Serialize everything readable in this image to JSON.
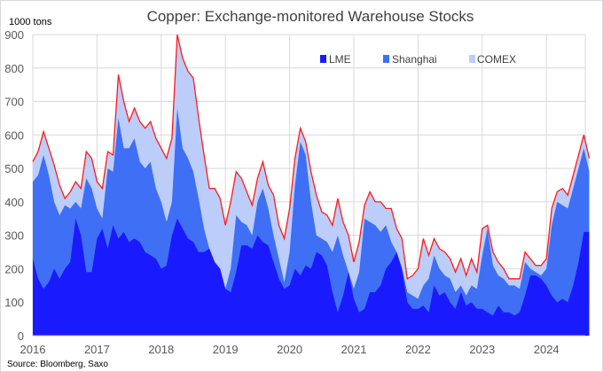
{
  "chart_data": {
    "type": "area",
    "stacked": true,
    "title": "Copper: Exchange-monitored Warehouse Stocks",
    "ylabel": "1000 tons",
    "xlabel": "",
    "source": "Source: Bloomberg, Saxo",
    "ylim": [
      0,
      900
    ],
    "yticks": [
      "0",
      "100",
      "200",
      "300",
      "400",
      "500",
      "600",
      "700",
      "800",
      "900"
    ],
    "xticks": [
      "2016",
      "2017",
      "2018",
      "2019",
      "2020",
      "2021",
      "2022",
      "2023",
      "2024"
    ],
    "x_start": "2016-01",
    "x_step": "month",
    "grid": true,
    "legend_position": "top-right",
    "colors": {
      "LME": "#1a1aff",
      "Shanghai": "#3f6ff5",
      "COMEX": "#bdcdfa",
      "total_line": "#ff1a1a"
    },
    "series": [
      {
        "name": "LME",
        "values": [
          230,
          170,
          140,
          160,
          200,
          170,
          200,
          220,
          350,
          300,
          190,
          190,
          290,
          320,
          260,
          330,
          290,
          310,
          280,
          290,
          280,
          250,
          240,
          230,
          200,
          210,
          300,
          350,
          320,
          290,
          280,
          250,
          250,
          260,
          220,
          200,
          140,
          130,
          190,
          270,
          270,
          260,
          300,
          280,
          270,
          220,
          170,
          140,
          150,
          200,
          180,
          210,
          200,
          250,
          240,
          210,
          130,
          70,
          120,
          190,
          110,
          70,
          80,
          130,
          130,
          150,
          200,
          220,
          250,
          200,
          100,
          80,
          80,
          90,
          70,
          150,
          120,
          130,
          100,
          80,
          130,
          90,
          100,
          80,
          80,
          70,
          60,
          90,
          70,
          70,
          60,
          70,
          120,
          180,
          180,
          170,
          150,
          120,
          100,
          110,
          100,
          150,
          220,
          310,
          310
        ]
      },
      {
        "name": "Shanghai",
        "values": [
          230,
          310,
          400,
          320,
          200,
          190,
          190,
          160,
          50,
          80,
          280,
          250,
          90,
          30,
          240,
          160,
          360,
          250,
          280,
          300,
          240,
          250,
          280,
          210,
          200,
          130,
          100,
          330,
          240,
          240,
          210,
          160,
          70,
          0,
          0,
          0,
          0,
          70,
          170,
          70,
          60,
          40,
          100,
          160,
          110,
          80,
          60,
          20,
          100,
          250,
          400,
          330,
          200,
          50,
          50,
          70,
          120,
          230,
          120,
          0,
          30,
          120,
          270,
          210,
          200,
          160,
          130,
          60,
          0,
          0,
          30,
          40,
          30,
          60,
          100,
          90,
          80,
          50,
          70,
          50,
          20,
          30,
          50,
          60,
          160,
          250,
          150,
          90,
          100,
          80,
          90,
          70,
          100,
          20,
          10,
          10,
          50,
          210,
          300,
          280,
          280,
          290,
          280,
          250,
          180
        ]
      },
      {
        "name": "COMEX",
        "values": [
          60,
          70,
          70,
          80,
          110,
          90,
          20,
          50,
          60,
          60,
          80,
          90,
          80,
          90,
          50,
          50,
          130,
          140,
          80,
          90,
          120,
          120,
          120,
          150,
          160,
          190,
          190,
          220,
          270,
          260,
          280,
          240,
          220,
          180,
          220,
          210,
          190,
          200,
          130,
          130,
          100,
          90,
          70,
          80,
          70,
          120,
          100,
          130,
          130,
          80,
          40,
          40,
          90,
          120,
          80,
          80,
          80,
          110,
          100,
          110,
          80,
          90,
          40,
          90,
          70,
          90,
          50,
          100,
          70,
          90,
          40,
          60,
          90,
          140,
          70,
          50,
          60,
          70,
          60,
          60,
          80,
          60,
          80,
          50,
          80,
          10,
          40,
          40,
          30,
          20,
          20,
          30,
          30,
          30,
          20,
          30,
          30,
          50,
          30,
          50,
          40,
          40,
          40,
          40,
          40
        ]
      }
    ]
  }
}
